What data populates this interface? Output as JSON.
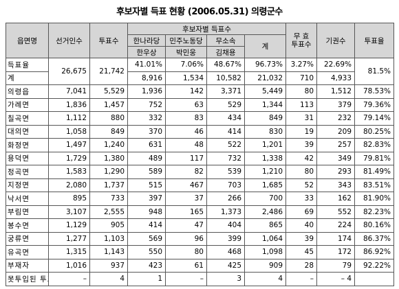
{
  "title": "후보자별 득표 현황 (2006.05.31) 의령군수",
  "header": {
    "district": "읍면명",
    "voters": "선거인수",
    "votes": "투표수",
    "by_candidate": "후보자별 득표수",
    "parties": [
      "한나라당",
      "민주노동당",
      "무소속"
    ],
    "candidates": [
      "한우상",
      "박민웅",
      "김채용"
    ],
    "total": "계",
    "invalid": [
      "무  효",
      "투표수"
    ],
    "abstain": "기권수",
    "turnout": "투표율"
  },
  "summary": {
    "rate_label": "득표율",
    "voters": "26,675",
    "votes": "21,742",
    "rates": [
      "41.01%",
      "7.06%",
      "48.67%",
      "96.73%",
      "3.27%",
      "22.69%"
    ],
    "turnout": "81.5%",
    "total_label": "계",
    "totals": [
      "8,916",
      "1,534",
      "10,582",
      "21,032",
      "710",
      "4,933"
    ]
  },
  "rows": [
    [
      "의령읍",
      "7,041",
      "5,529",
      "1,936",
      "142",
      "3,371",
      "5,449",
      "80",
      "1,512",
      "78.53%"
    ],
    [
      "가례면",
      "1,836",
      "1,457",
      "752",
      "63",
      "529",
      "1,344",
      "113",
      "379",
      "79.36%"
    ],
    [
      "칠곡면",
      "1,112",
      "880",
      "332",
      "83",
      "434",
      "849",
      "31",
      "232",
      "79.14%"
    ],
    [
      "대의면",
      "1,058",
      "849",
      "370",
      "46",
      "414",
      "830",
      "19",
      "209",
      "80.25%"
    ],
    [
      "화정면",
      "1,497",
      "1,240",
      "631",
      "48",
      "522",
      "1,201",
      "39",
      "257",
      "82.83%"
    ],
    [
      "용덕면",
      "1,729",
      "1,380",
      "489",
      "117",
      "732",
      "1,338",
      "42",
      "349",
      "79.81%"
    ],
    [
      "정곡면",
      "1,583",
      "1,290",
      "589",
      "82",
      "539",
      "1,210",
      "80",
      "293",
      "81.49%"
    ],
    [
      "지정면",
      "2,080",
      "1,737",
      "515",
      "467",
      "703",
      "1,685",
      "52",
      "343",
      "83.51%"
    ],
    [
      "낙서면",
      "895",
      "733",
      "397",
      "37",
      "266",
      "700",
      "33",
      "162",
      "81.90%"
    ],
    [
      "부림면",
      "3,107",
      "2,555",
      "948",
      "165",
      "1,373",
      "2,486",
      "69",
      "552",
      "82.23%"
    ],
    [
      "봉수면",
      "1,129",
      "905",
      "414",
      "47",
      "404",
      "865",
      "40",
      "224",
      "80.16%"
    ],
    [
      "궁류면",
      "1,277",
      "1,103",
      "569",
      "96",
      "399",
      "1,064",
      "39",
      "174",
      "86.37%"
    ],
    [
      "유곡면",
      "1,315",
      "1,143",
      "550",
      "80",
      "468",
      "1,098",
      "45",
      "172",
      "86.92%"
    ],
    [
      "부재자",
      "1,016",
      "937",
      "423",
      "61",
      "425",
      "909",
      "28",
      "79",
      "92.22%"
    ],
    [
      "못투입된 투표",
      "–",
      "4",
      "1",
      "–",
      "3",
      "4",
      "–",
      "– 4"
    ]
  ]
}
